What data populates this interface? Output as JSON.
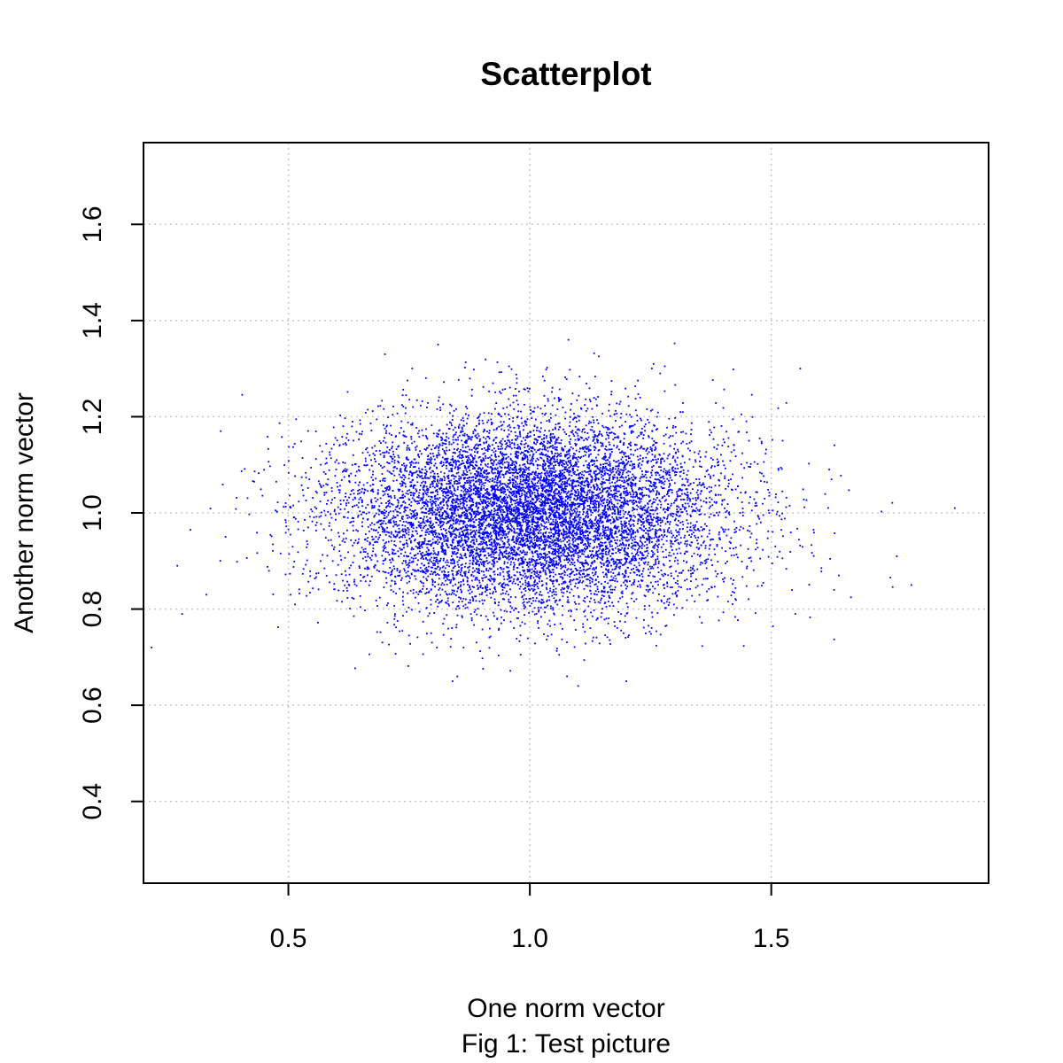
{
  "chart_data": {
    "type": "scatter",
    "title": "Scatterplot",
    "xlabel": "One norm vector",
    "ylabel": "Another norm vector",
    "caption": "Fig 1: Test picture",
    "xlim": [
      0.2,
      1.95
    ],
    "ylim": [
      0.23,
      1.77
    ],
    "x_ticks": [
      0.5,
      1.0,
      1.5
    ],
    "x_tick_labels": [
      "0.5",
      "1.0",
      "1.5"
    ],
    "y_ticks": [
      0.4,
      0.6,
      0.8,
      1.0,
      1.2,
      1.4,
      1.6
    ],
    "y_tick_labels": [
      "0.4",
      "0.6",
      "0.8",
      "1.0",
      "1.2",
      "1.4",
      "1.6"
    ],
    "grid": true,
    "grid_style": "dotted",
    "point_color": "#0000ff",
    "series": [
      {
        "distribution": "normal",
        "n_points": 10000,
        "x_mean": 1.0,
        "x_sd": 0.2,
        "y_mean": 1.0,
        "y_sd": 0.1,
        "x": [
          0.27,
          0.28,
          0.33,
          0.36,
          0.37,
          1.88,
          1.79,
          1.76,
          1.62,
          1.63,
          1.64,
          1.56,
          1.55,
          1.27,
          1.08,
          0.81,
          0.84,
          0.7,
          1.1,
          0.85,
          1.2
        ],
        "y": [
          0.89,
          0.79,
          0.83,
          1.17,
          0.95,
          1.01,
          0.85,
          0.91,
          1.09,
          0.84,
          0.87,
          1.3,
          0.79,
          1.29,
          1.36,
          1.35,
          0.65,
          1.33,
          0.64,
          0.66,
          0.65
        ]
      }
    ],
    "legend": "none"
  }
}
